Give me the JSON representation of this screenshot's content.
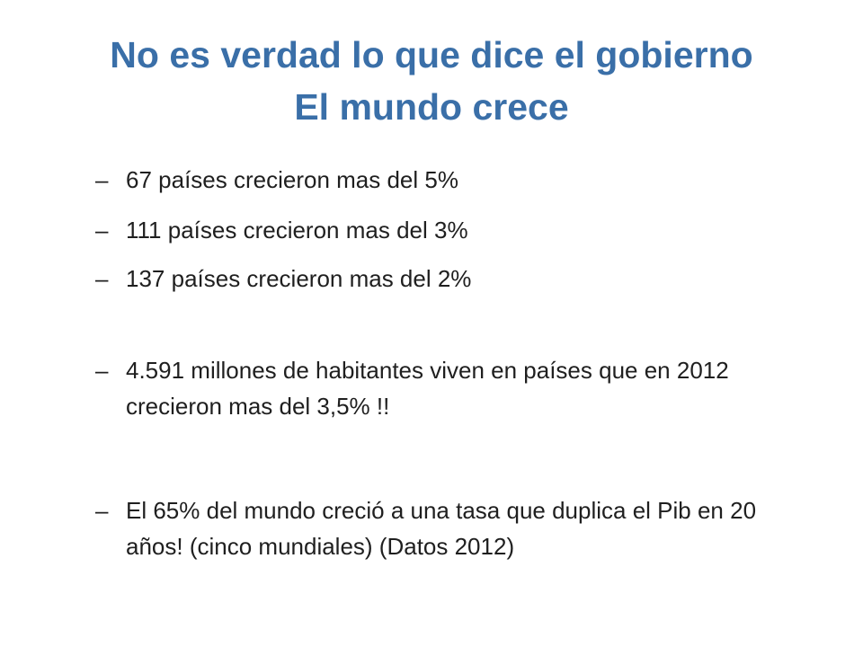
{
  "slide": {
    "title_line1": "No es verdad lo que dice el gobierno",
    "title_line2": "El mundo crece",
    "bullet_marker": "–",
    "bullets": [
      "67 países crecieron mas del 5%",
      "111 países crecieron mas del 3%",
      "137 países crecieron mas del 2%",
      "4.591 millones de habitantes viven en países que en 2012 crecieron mas del 3,5% !!",
      "El 65% del mundo creció a una tasa que duplica el Pib en 20 años! (cinco mundiales) (Datos 2012)"
    ],
    "colors": {
      "title": "#3A6FA8",
      "body": "#1f1f1f",
      "background": "#ffffff"
    }
  }
}
